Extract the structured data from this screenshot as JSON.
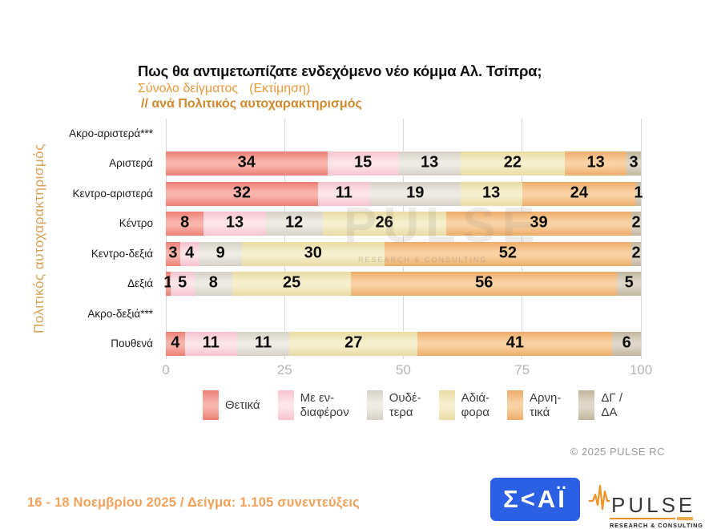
{
  "header": {
    "title": "Πως θα αντιμετωπίζατε ενδεχόμενο νέο κόμμα Αλ. Τσίπρα;",
    "subtitle_sample": "Σύνολο δείγματος",
    "subtitle_estimate": "(Εκτίμηση)",
    "subtitle_breakdown": "// ανά Πολιτικός αυτοχαρακτηρισμός"
  },
  "chart_data": {
    "type": "bar",
    "orientation": "horizontal",
    "stacked": true,
    "title": "Πως θα αντιμετωπίζατε ενδεχόμενο νέο κόμμα Αλ. Τσίπρα;",
    "ylabel": "Πολιτικός αυτοχαρακτηρισμός",
    "xlim": [
      0,
      100
    ],
    "x_ticks": [
      "0",
      "25",
      "50",
      "75",
      "100"
    ],
    "grid": true,
    "legend_position": "bottom",
    "categories": [
      "Ακρο-αριστερά***",
      "Αριστερά",
      "Κεντρο-αριστερά",
      "Κέντρο",
      "Κεντρο-δεξιά",
      "Δεξιά",
      "Ακρο-δεξιά***",
      "Πουθενά"
    ],
    "series": [
      {
        "name": "Θετικά",
        "color": "#ee8a80",
        "color_edge": "#ec7f75",
        "color_mid": "#f9b4ac",
        "values": [
          null,
          34,
          32,
          8,
          3,
          1,
          null,
          4
        ]
      },
      {
        "name": "Με ενδιαφέρον",
        "color": "#f8ccd6",
        "color_edge": "#f6c2ce",
        "color_mid": "#fde5ea",
        "values": [
          null,
          15,
          11,
          13,
          4,
          5,
          null,
          11
        ]
      },
      {
        "name": "Ουδέτερα",
        "color": "#dcd7cd",
        "color_edge": "#d6d1c6",
        "color_mid": "#edebe4",
        "values": [
          null,
          13,
          19,
          12,
          9,
          8,
          null,
          11
        ]
      },
      {
        "name": "Αδιάφορα",
        "color": "#ede2af",
        "color_edge": "#e9dba2",
        "color_mid": "#f5efcd",
        "values": [
          null,
          22,
          13,
          26,
          30,
          25,
          null,
          27
        ]
      },
      {
        "name": "Αρνητικά",
        "color": "#f2b87c",
        "color_edge": "#eeac69",
        "color_mid": "#f8d2a4",
        "values": [
          null,
          13,
          24,
          39,
          52,
          56,
          null,
          41
        ]
      },
      {
        "name": "ΔΓ / ΔΑ",
        "color": "#ccc0a9",
        "color_edge": "#c2b69d",
        "color_mid": "#ded7c9",
        "values": [
          null,
          3,
          1,
          2,
          2,
          5,
          null,
          6
        ]
      }
    ]
  },
  "legend": {
    "items": [
      {
        "lines": [
          "Θετικά"
        ]
      },
      {
        "lines": [
          "Με εν-",
          "διαφέρον"
        ]
      },
      {
        "lines": [
          "Ουδέ-",
          "τερα"
        ]
      },
      {
        "lines": [
          "Αδιά-",
          "φορα"
        ]
      },
      {
        "lines": [
          "Αρνη-",
          "τικά"
        ]
      },
      {
        "lines": [
          "ΔΓ /",
          "ΔΑ"
        ]
      }
    ]
  },
  "watermark": {
    "text": "PULSE",
    "subtext": "RESEARCH & CONSULTING"
  },
  "copyright": "©  2025  PULSE RC",
  "footer": {
    "note": "16 - 18 Νοεμβρίου 2025  /  Δείγμα:  1.105 συνεντεύξεις",
    "skai_logo_text": "Σ<ΑΪ",
    "pulse_logo_text": "PULSE",
    "pulse_logo_subtext": "RESEARCH & CONSULTING"
  },
  "colors": {
    "accent_orange": "#e6993b",
    "subtitle_orange": "#cf8a2e",
    "ylabel_tan": "#d8a156",
    "axis_gray": "#b5b5b5",
    "grid_gray": "#d9d9d9",
    "footer_orange": "#f2a159",
    "skai_blue": "#2b5fe4",
    "pulse_orange": "#ef9226"
  }
}
